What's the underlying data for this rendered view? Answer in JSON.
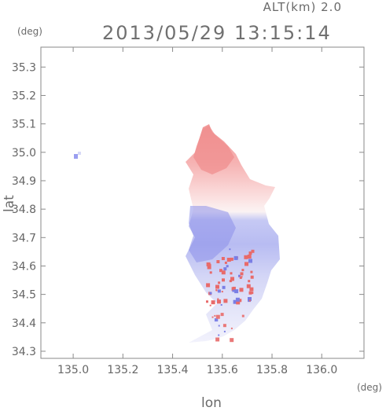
{
  "header": {
    "altitude_label": "ALT(km) 2.0",
    "timestamp": "2013/05/29 13:15:14"
  },
  "chart_data": {
    "type": "heatmap",
    "title": "2013/05/29 13:15:14",
    "subtitle": "ALT(km) 2.0",
    "xlabel": "lon",
    "ylabel": "lat",
    "x_unit": "(deg)",
    "y_unit": "(deg)",
    "xlim": [
      134.87,
      136.17
    ],
    "ylim": [
      34.275,
      35.37
    ],
    "x_ticks": [
      135.0,
      135.2,
      135.4,
      135.6,
      135.8,
      136.0
    ],
    "x_tick_labels": [
      "135.0",
      "135.2",
      "135.4",
      "135.6",
      "135.8",
      "136.0"
    ],
    "y_ticks": [
      34.3,
      34.4,
      34.5,
      34.6,
      34.7,
      34.8,
      34.9,
      35.0,
      35.1,
      35.2,
      35.3
    ],
    "y_tick_labels": [
      "34.3",
      "34.4",
      "34.5",
      "34.6",
      "34.7",
      "34.8",
      "34.9",
      "35.0",
      "35.1",
      "35.2",
      "35.3"
    ],
    "grid": false,
    "colors": {
      "positive": "#f08080",
      "negative": "#8888ee",
      "neutral": "#f4f4fb"
    },
    "regions": [
      {
        "name": "north-red-lobe",
        "sign": "positive",
        "lon_range": [
          135.44,
          135.8
        ],
        "lat_range": [
          34.83,
          35.1
        ]
      },
      {
        "name": "central-blue-band",
        "sign": "negative",
        "lon_range": [
          135.4,
          135.82
        ],
        "lat_range": [
          34.45,
          34.83
        ]
      },
      {
        "name": "southwest-red-speckle",
        "sign": "positive",
        "lon_range": [
          135.5,
          135.72
        ],
        "lat_range": [
          34.42,
          34.66
        ]
      }
    ]
  }
}
